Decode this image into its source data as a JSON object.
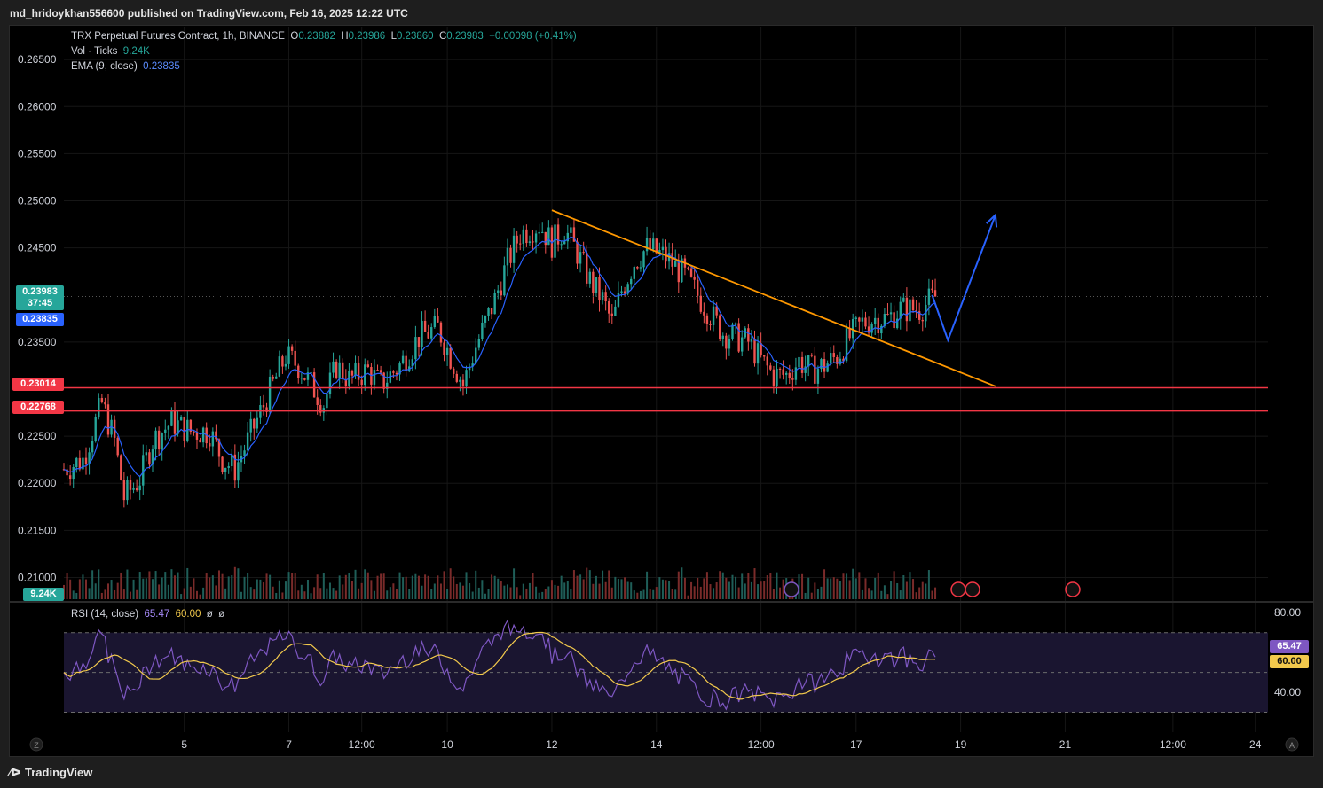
{
  "header": {
    "publisher_text": "md_hridoykhan556600 published on TradingView.com, Feb 16, 2025 12:22 UTC"
  },
  "legend": {
    "symbol": "TRX Perpetual Futures Contract, 1h, BINANCE",
    "o_label": "O",
    "o_value": "0.23882",
    "h_label": "H",
    "h_value": "0.23986",
    "l_label": "L",
    "l_value": "0.23860",
    "c_label": "C",
    "c_value": "0.23983",
    "change": "+0.00098 (+0.41%)",
    "vol_label": "Vol · Ticks",
    "vol_value": "9.24K",
    "ema_label": "EMA (9, close)",
    "ema_value": "0.23835",
    "rsi_label": "RSI (14, close)",
    "rsi_value": "65.47",
    "rsi_ma_value": "60.00",
    "rsi_extra_1": "ø",
    "rsi_extra_2": "ø"
  },
  "price_tags": {
    "last_price": "0.23983",
    "countdown": "37:45",
    "ema": "0.23835",
    "support_1": "0.23014",
    "support_2": "0.22768",
    "volume": "9.24K",
    "rsi": "65.47",
    "rsi_ma": "60.00"
  },
  "footer": {
    "brand": "TradingView",
    "zoom_left": "Z",
    "auto_scale": "A"
  },
  "colors": {
    "up": "#26a69a",
    "down": "#ef5350",
    "ema": "#2962ff",
    "trendline": "#ff9800",
    "support": "#f23645",
    "arrow": "#2962ff",
    "rsi": "#7e57c2",
    "rsi_ma": "#f2c94c",
    "rsi_band": "#1a1530"
  },
  "chart_data": [
    {
      "type": "candlestick",
      "title": "TRX Perpetual Futures Contract, 1h, BINANCE",
      "ylim": [
        0.2075,
        0.2685
      ],
      "yticks": [
        0.265,
        0.26,
        0.255,
        0.25,
        0.245,
        0.235,
        0.225,
        0.22,
        0.215,
        0.21
      ],
      "ytick_labels": [
        "0.26500",
        "0.26000",
        "0.25500",
        "0.25000",
        "0.24500",
        "0.23500",
        "0.22500",
        "0.22000",
        "0.21500",
        "0.21000"
      ],
      "x_range_hours": [
        0,
        380
      ],
      "xtick_hours": [
        38,
        71,
        94,
        121,
        154,
        187,
        220,
        250,
        283,
        316,
        350,
        376
      ],
      "xtick_labels": [
        "5",
        "7",
        "12:00",
        "10",
        "12",
        "14",
        "12:00",
        "17",
        "19",
        "21",
        "12:00",
        "24"
      ],
      "anchors_close": [
        [
          0,
          0.2215
        ],
        [
          6,
          0.2225
        ],
        [
          12,
          0.2285
        ],
        [
          16,
          0.2245
        ],
        [
          19,
          0.2185
        ],
        [
          24,
          0.2205
        ],
        [
          28,
          0.2245
        ],
        [
          34,
          0.2265
        ],
        [
          40,
          0.2255
        ],
        [
          46,
          0.2255
        ],
        [
          50,
          0.2225
        ],
        [
          54,
          0.2215
        ],
        [
          58,
          0.2245
        ],
        [
          62,
          0.2275
        ],
        [
          66,
          0.2305
        ],
        [
          70,
          0.2335
        ],
        [
          74,
          0.2325
        ],
        [
          78,
          0.2305
        ],
        [
          82,
          0.2285
        ],
        [
          86,
          0.2325
        ],
        [
          90,
          0.231
        ],
        [
          96,
          0.232
        ],
        [
          100,
          0.2305
        ],
        [
          106,
          0.2325
        ],
        [
          112,
          0.2355
        ],
        [
          118,
          0.2365
        ],
        [
          122,
          0.2335
        ],
        [
          126,
          0.2305
        ],
        [
          130,
          0.2345
        ],
        [
          136,
          0.2395
        ],
        [
          140,
          0.2435
        ],
        [
          144,
          0.2465
        ],
        [
          150,
          0.2475
        ],
        [
          154,
          0.2455
        ],
        [
          158,
          0.247
        ],
        [
          162,
          0.2445
        ],
        [
          166,
          0.2415
        ],
        [
          170,
          0.2395
        ],
        [
          173,
          0.237
        ],
        [
          176,
          0.2405
        ],
        [
          180,
          0.2435
        ],
        [
          184,
          0.245
        ],
        [
          190,
          0.244
        ],
        [
          196,
          0.242
        ],
        [
          200,
          0.24
        ],
        [
          204,
          0.238
        ],
        [
          208,
          0.236
        ],
        [
          212,
          0.2355
        ],
        [
          216,
          0.235
        ],
        [
          220,
          0.233
        ],
        [
          224,
          0.2315
        ],
        [
          228,
          0.2315
        ],
        [
          232,
          0.233
        ],
        [
          236,
          0.232
        ],
        [
          240,
          0.2325
        ],
        [
          244,
          0.2335
        ],
        [
          248,
          0.2355
        ],
        [
          252,
          0.237
        ],
        [
          256,
          0.2375
        ],
        [
          260,
          0.2375
        ],
        [
          264,
          0.2385
        ],
        [
          270,
          0.2385
        ],
        [
          275,
          0.2398
        ]
      ],
      "ema": {
        "name": "EMA (9, close)",
        "last": 0.23835
      },
      "horizontal_lines": [
        0.23014,
        0.22768
      ],
      "trendline": {
        "from": [
          154,
          0.249
        ],
        "to": [
          294,
          0.2303
        ]
      },
      "projection_arrow": [
        [
          274,
          0.24
        ],
        [
          279,
          0.2352
        ],
        [
          294,
          0.2485
        ]
      ],
      "last_price": 0.23983
    },
    {
      "type": "bar",
      "title": "Vol · Ticks",
      "last": "9.24K"
    },
    {
      "type": "line",
      "title": "RSI (14, close)",
      "ylim": [
        20,
        85
      ],
      "yticks": [
        80,
        40
      ],
      "ytick_labels": [
        "80.00",
        "40.00"
      ],
      "bands": [
        70,
        50,
        30
      ],
      "series": [
        {
          "name": "RSI",
          "last": 65.47
        },
        {
          "name": "MA",
          "last": 60.0
        }
      ]
    }
  ]
}
